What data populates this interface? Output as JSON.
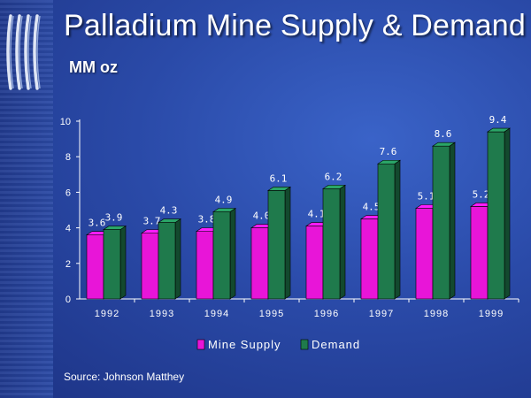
{
  "title": "Palladium Mine Supply & Demand",
  "units": "MM oz",
  "source": "Source:  Johnson Matthey",
  "colors": {
    "supply": "#e815d8",
    "demand": "#1f7a4c",
    "background": "#2a4aa8"
  },
  "chart_data": {
    "type": "bar",
    "categories": [
      "1992",
      "1993",
      "1994",
      "1995",
      "1996",
      "1997",
      "1998",
      "1999"
    ],
    "series": [
      {
        "name": "Mine Supply",
        "values": [
          3.6,
          3.7,
          3.8,
          4.0,
          4.1,
          4.5,
          5.1,
          5.2
        ]
      },
      {
        "name": "Demand",
        "values": [
          3.9,
          4.3,
          4.9,
          6.1,
          6.2,
          7.6,
          8.6,
          9.4
        ]
      }
    ],
    "data_labels": {
      "Mine Supply": [
        "3.6",
        "3.7",
        "3.8",
        "4.0",
        "4.1",
        "4.5",
        "5.1",
        "5.2"
      ],
      "Demand": [
        "3.9",
        "4.3",
        "4.9",
        "6.1",
        "6.2",
        "7.6",
        "8.6",
        "9.4"
      ]
    },
    "ylim": [
      0,
      10
    ],
    "yticks": [
      "0",
      "2",
      "4",
      "6",
      "8",
      "10"
    ],
    "grid": false,
    "legend_position": "bottom-center",
    "style": "3d-bars"
  }
}
